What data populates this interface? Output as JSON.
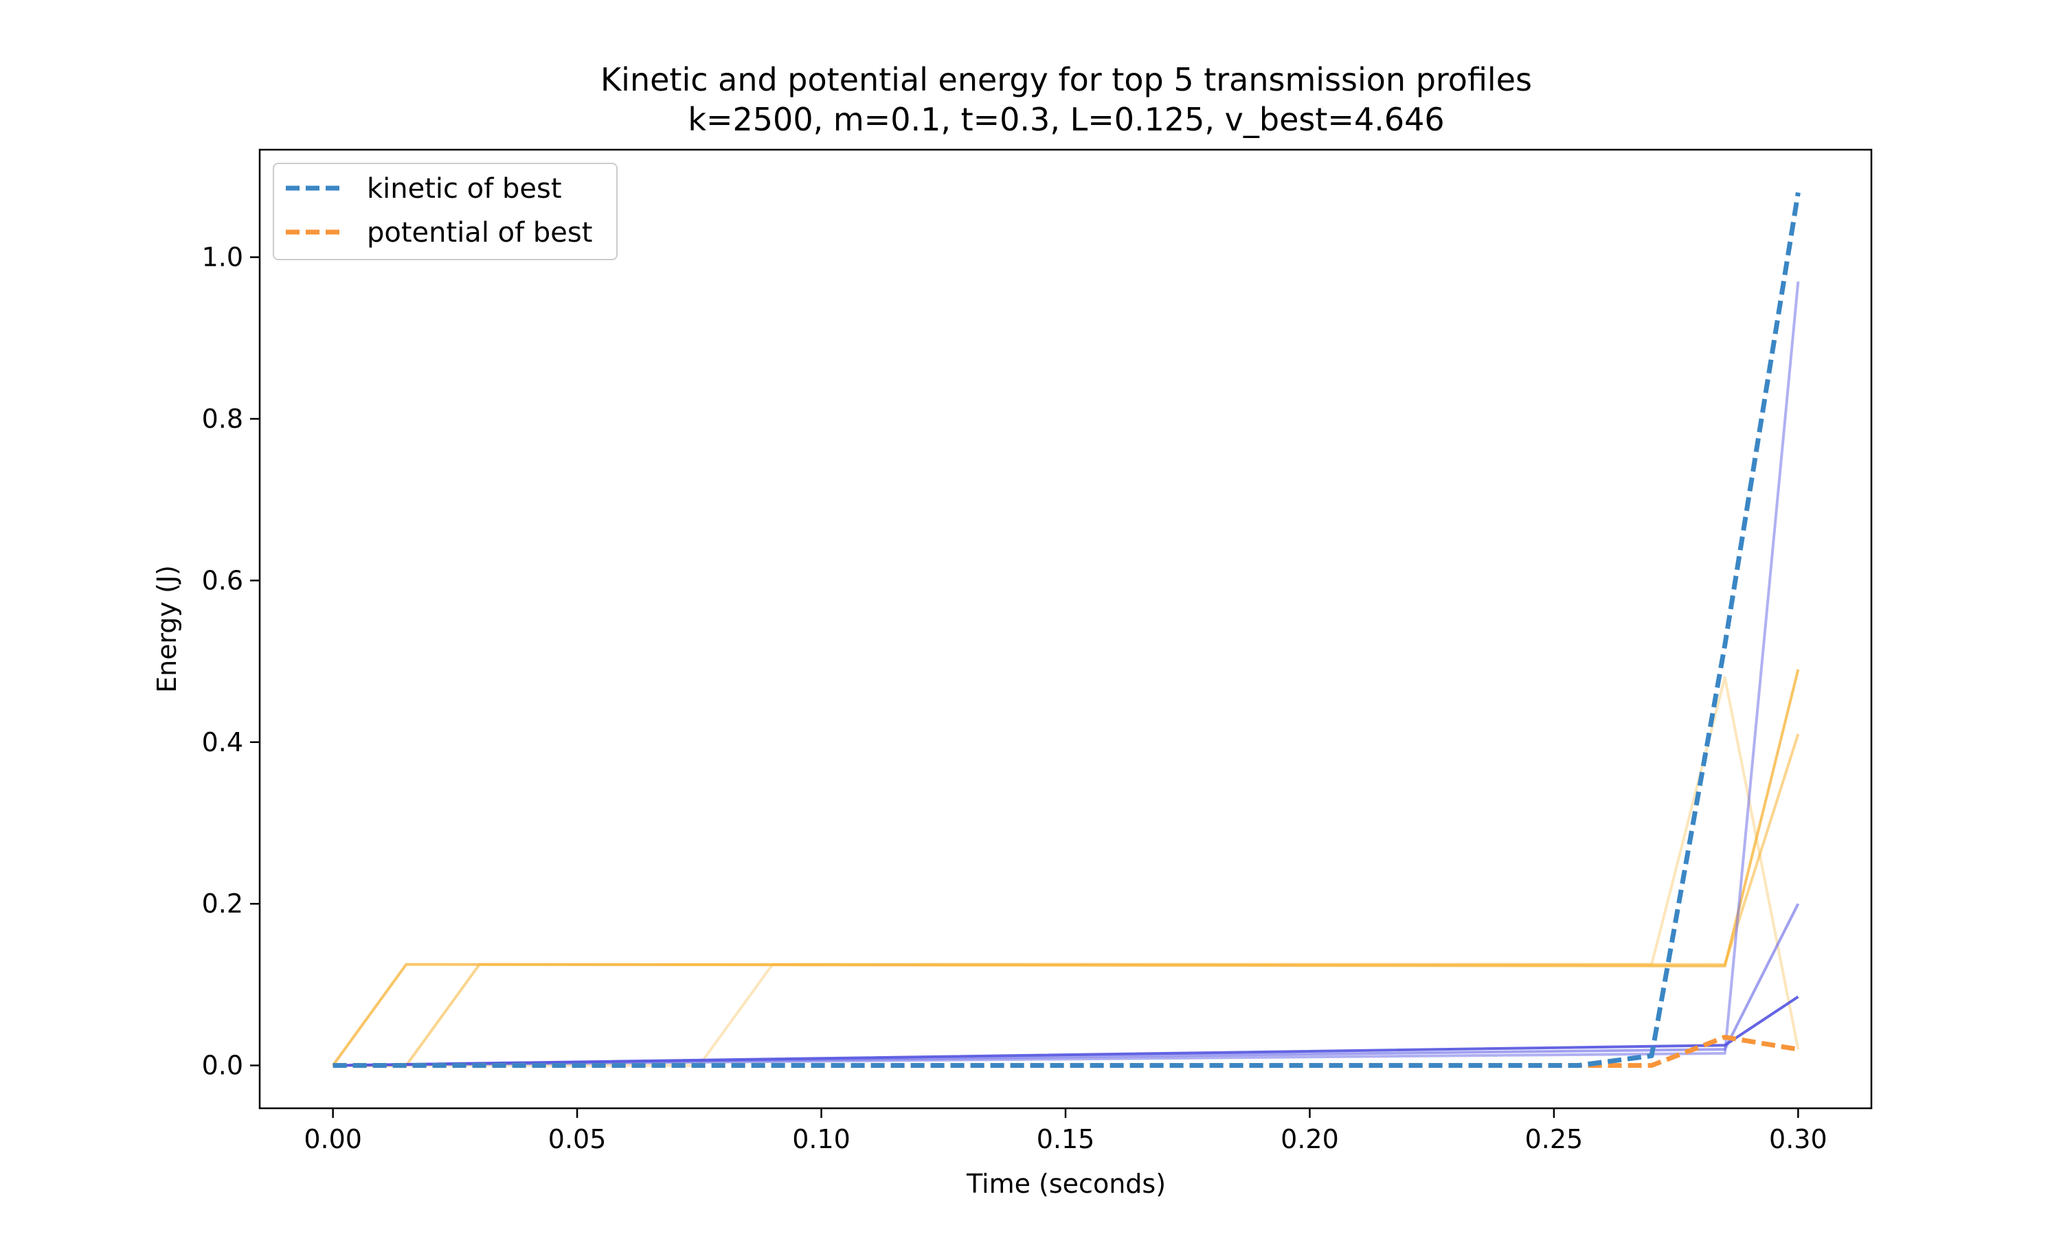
{
  "chart_data": {
    "type": "line",
    "title": "Kinetic and potential energy for top 5 transmission profiles",
    "subtitle": "k=2500, m=0.1, t=0.3, L=0.125, v_best=4.646",
    "xlabel": "Time (seconds)",
    "ylabel": "Energy (J)",
    "xlim": [
      -0.015,
      0.315
    ],
    "ylim": [
      -0.053,
      1.133
    ],
    "xticks": [
      0.0,
      0.05,
      0.1,
      0.15,
      0.2,
      0.25,
      0.3
    ],
    "xtick_labels": [
      "0.00",
      "0.05",
      "0.10",
      "0.15",
      "0.20",
      "0.25",
      "0.30"
    ],
    "yticks": [
      0.0,
      0.2,
      0.4,
      0.6,
      0.8,
      1.0
    ],
    "ytick_labels": [
      "0.0",
      "0.2",
      "0.4",
      "0.6",
      "0.8",
      "1.0"
    ],
    "grid": false,
    "legend_position": "top-left",
    "legend": [
      {
        "label": "kinetic of best",
        "color": "#3a86c4",
        "dashed": true
      },
      {
        "label": "potential of best",
        "color": "#f7953a",
        "dashed": true
      }
    ],
    "series": [
      {
        "role": "potential",
        "color": "#f7b233",
        "opacity": 0.32,
        "width": 4,
        "dashed": false,
        "x": [
          0,
          0.075,
          0.09,
          0.27,
          0.285,
          0.3
        ],
        "y": [
          0,
          0,
          0.125,
          0.125,
          0.48,
          0.02
        ]
      },
      {
        "role": "potential",
        "color": "#f7b233",
        "opacity": 0.55,
        "width": 4,
        "dashed": false,
        "x": [
          0,
          0.015,
          0.03,
          0.285,
          0.3
        ],
        "y": [
          0,
          0,
          0.125,
          0.125,
          0.41
        ]
      },
      {
        "role": "potential",
        "color": "#f7b233",
        "opacity": 0.75,
        "width": 4,
        "dashed": false,
        "x": [
          0,
          0.015,
          0.285,
          0.3
        ],
        "y": [
          0,
          0.125,
          0.123,
          0.49
        ]
      },
      {
        "role": "kinetic",
        "color": "#6f6fe8",
        "opacity": 0.55,
        "width": 4,
        "dashed": false,
        "x": [
          0,
          0.285,
          0.3
        ],
        "y": [
          0,
          0.015,
          0.97
        ]
      },
      {
        "role": "kinetic",
        "color": "#6f6fe8",
        "opacity": 0.65,
        "width": 4,
        "dashed": false,
        "x": [
          0,
          0.285,
          0.3
        ],
        "y": [
          0,
          0.02,
          0.2
        ]
      },
      {
        "role": "kinetic",
        "color": "#5353e0",
        "opacity": 0.9,
        "width": 4,
        "dashed": false,
        "x": [
          0,
          0.285,
          0.3
        ],
        "y": [
          0,
          0.025,
          0.085
        ]
      },
      {
        "role": "potential",
        "name": "potential of best",
        "color": "#f7953a",
        "opacity": 1,
        "width": 7,
        "dashed": true,
        "x": [
          0,
          0.27,
          0.285,
          0.3
        ],
        "y": [
          0,
          0,
          0.035,
          0.02
        ]
      },
      {
        "role": "kinetic",
        "name": "kinetic of best",
        "color": "#3a86c4",
        "opacity": 1,
        "width": 7,
        "dashed": true,
        "x": [
          0,
          0.255,
          0.27,
          0.285,
          0.3
        ],
        "y": [
          0,
          0,
          0.012,
          0.52,
          1.08
        ]
      }
    ]
  }
}
